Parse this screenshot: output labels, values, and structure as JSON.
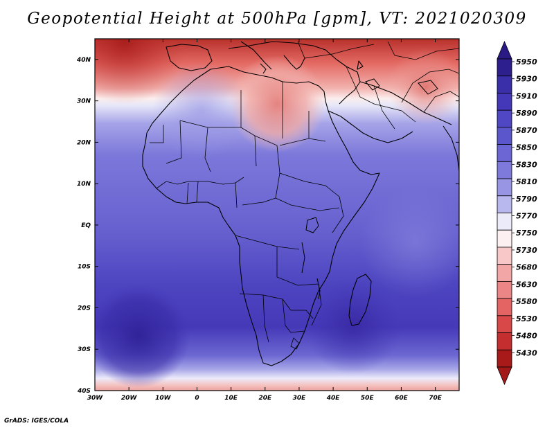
{
  "title": "Geopotential Height at 500hPa [gpm], VT: 2021020309",
  "credit": "GrADS: IGES/COLA",
  "map": {
    "lon_range": [
      -30,
      77
    ],
    "lat_range": [
      -40,
      45
    ],
    "lon_ticks": [
      "30W",
      "20W",
      "10W",
      "0",
      "10E",
      "20E",
      "30E",
      "40E",
      "50E",
      "60E",
      "70E"
    ],
    "lat_ticks": [
      "40S",
      "30S",
      "20S",
      "10S",
      "EQ",
      "10N",
      "20N",
      "30N",
      "40N"
    ]
  },
  "colorbar": {
    "labels": [
      "5950",
      "5930",
      "5910",
      "5890",
      "5870",
      "5850",
      "5830",
      "5810",
      "5790",
      "5770",
      "5750",
      "5730",
      "5680",
      "5630",
      "5580",
      "5530",
      "5480",
      "5430"
    ],
    "colors": [
      "#2e1f8e",
      "#3a2fa8",
      "#4538b8",
      "#4f47c4",
      "#5c56cc",
      "#6b66d4",
      "#7e7adc",
      "#9896e4",
      "#b9b8ee",
      "#ecebfa",
      "#fdf0f0",
      "#f8c8c8",
      "#f2a6a6",
      "#ec8686",
      "#e46464",
      "#d84848",
      "#c42e2e",
      "#a81a1a"
    ],
    "top_arrow_color": "#2a1a86",
    "bottom_arrow_color": "#a31818"
  }
}
